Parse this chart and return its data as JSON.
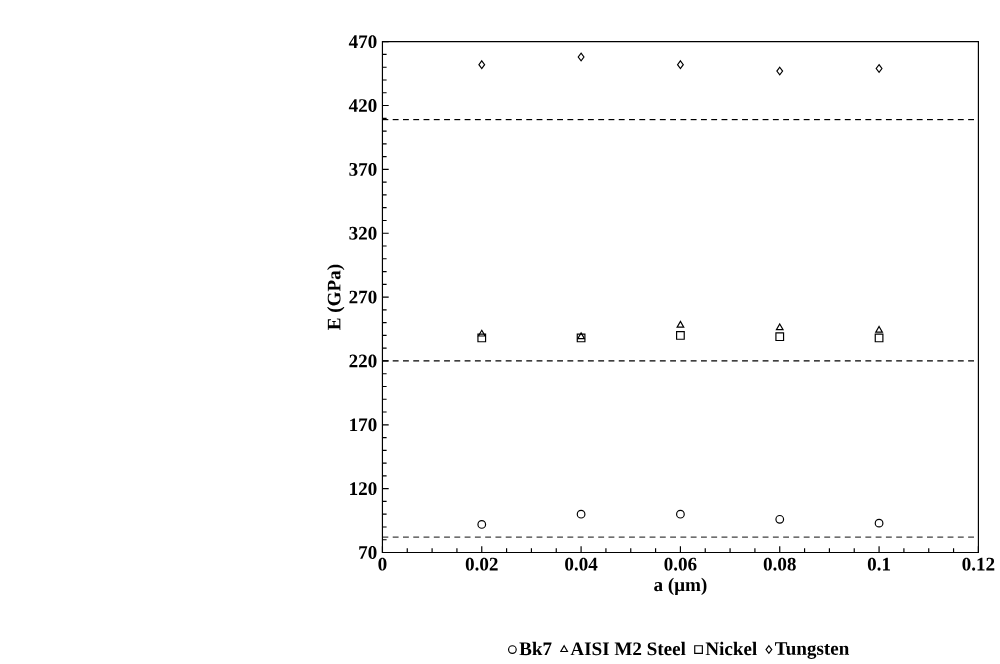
{
  "chart_data": {
    "type": "scatter",
    "xlabel": "a (μm)",
    "ylabel": "E (GPa)",
    "x": [
      0.02,
      0.04,
      0.06,
      0.08,
      0.1
    ],
    "xlim": [
      0,
      0.12
    ],
    "xticks": [
      0,
      0.02,
      0.04,
      0.06,
      0.08,
      0.1,
      0.12
    ],
    "ylim": [
      70,
      470
    ],
    "yticks": [
      70,
      120,
      170,
      220,
      270,
      320,
      370,
      420,
      470
    ],
    "series": [
      {
        "name": "Bk7",
        "color": "#000000",
        "marker": "circle",
        "values": [
          92,
          100,
          100,
          96,
          93
        ]
      },
      {
        "name": "AISI M2 Steel",
        "color": "#000000",
        "marker": "triangle",
        "values": [
          241,
          239,
          248,
          246,
          244
        ]
      },
      {
        "name": "Nickel",
        "color": "#000000",
        "marker": "square",
        "values": [
          238,
          238,
          240,
          239,
          238
        ]
      },
      {
        "name": "Tungsten",
        "color": "#000000",
        "marker": "diamond",
        "values": [
          452,
          458,
          452,
          447,
          449
        ]
      }
    ],
    "ref_lines": [
      {
        "axis": "y",
        "value": 82,
        "line_style": "dashed"
      },
      {
        "axis": "y",
        "value": 220,
        "line_style": "dashed"
      },
      {
        "axis": "y",
        "value": 409,
        "line_style": "dashed"
      }
    ],
    "legend": "bottom",
    "grid": false
  }
}
